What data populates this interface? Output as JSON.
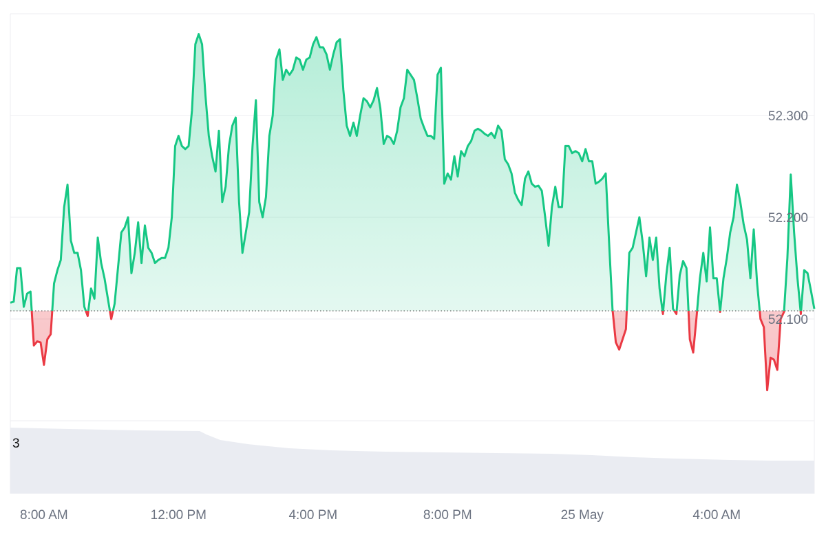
{
  "chart_data": {
    "type": "area",
    "baseline": 52.108,
    "ylim": [
      52.0,
      52.4
    ],
    "y_ticks": [
      "52.300",
      "52.200",
      "52.100"
    ],
    "y_tick_values": [
      52.3,
      52.2,
      52.1
    ],
    "x_ticks": [
      "8:00 AM",
      "12:00 PM",
      "4:00 PM",
      "8:00 PM",
      "25 May",
      "4:00 AM"
    ],
    "x_tick_hours": [
      8,
      12,
      16,
      20,
      24,
      28
    ],
    "xlim_hours": [
      7.0,
      30.9
    ],
    "colors": {
      "up": "#16c784",
      "down": "#ea3943",
      "up_fill": "#16c784",
      "down_fill": "#ea3943",
      "grid": "#eeeef0",
      "baseline": "#555555",
      "volume": "#eaecf2"
    },
    "volume_axis_label": "3",
    "series": [
      {
        "values": [
          [
            7.0,
            52.116
          ],
          [
            7.1,
            52.117
          ],
          [
            7.2,
            52.15
          ],
          [
            7.3,
            52.15
          ],
          [
            7.4,
            52.112
          ],
          [
            7.5,
            52.125
          ],
          [
            7.6,
            52.127
          ],
          [
            7.7,
            52.074
          ],
          [
            7.8,
            52.078
          ],
          [
            7.9,
            52.077
          ],
          [
            8.0,
            52.055
          ],
          [
            8.1,
            52.08
          ],
          [
            8.2,
            52.085
          ],
          [
            8.3,
            52.135
          ],
          [
            8.4,
            52.148
          ],
          [
            8.5,
            52.158
          ],
          [
            8.6,
            52.21
          ],
          [
            8.7,
            52.232
          ],
          [
            8.8,
            52.177
          ],
          [
            8.9,
            52.165
          ],
          [
            9.0,
            52.165
          ],
          [
            9.1,
            52.148
          ],
          [
            9.2,
            52.112
          ],
          [
            9.3,
            52.103
          ],
          [
            9.4,
            52.13
          ],
          [
            9.5,
            52.12
          ],
          [
            9.6,
            52.18
          ],
          [
            9.7,
            52.155
          ],
          [
            9.8,
            52.14
          ],
          [
            9.9,
            52.12
          ],
          [
            10.0,
            52.1
          ],
          [
            10.1,
            52.115
          ],
          [
            10.2,
            52.15
          ],
          [
            10.3,
            52.185
          ],
          [
            10.4,
            52.19
          ],
          [
            10.5,
            52.2
          ],
          [
            10.6,
            52.145
          ],
          [
            10.7,
            52.165
          ],
          [
            10.8,
            52.195
          ],
          [
            10.9,
            52.155
          ],
          [
            11.0,
            52.192
          ],
          [
            11.1,
            52.17
          ],
          [
            11.2,
            52.165
          ],
          [
            11.3,
            52.155
          ],
          [
            11.4,
            52.158
          ],
          [
            11.5,
            52.16
          ],
          [
            11.6,
            52.16
          ],
          [
            11.7,
            52.17
          ],
          [
            11.8,
            52.2
          ],
          [
            11.9,
            52.27
          ],
          [
            12.0,
            52.28
          ],
          [
            12.1,
            52.27
          ],
          [
            12.2,
            52.267
          ],
          [
            12.3,
            52.27
          ],
          [
            12.4,
            52.305
          ],
          [
            12.5,
            52.37
          ],
          [
            12.6,
            52.38
          ],
          [
            12.7,
            52.37
          ],
          [
            12.8,
            52.32
          ],
          [
            12.9,
            52.28
          ],
          [
            13.0,
            52.26
          ],
          [
            13.1,
            52.245
          ],
          [
            13.2,
            52.285
          ],
          [
            13.3,
            52.215
          ],
          [
            13.4,
            52.23
          ],
          [
            13.5,
            52.27
          ],
          [
            13.6,
            52.29
          ],
          [
            13.7,
            52.298
          ],
          [
            13.8,
            52.215
          ],
          [
            13.9,
            52.165
          ],
          [
            14.0,
            52.185
          ],
          [
            14.1,
            52.205
          ],
          [
            14.2,
            52.27
          ],
          [
            14.3,
            52.315
          ],
          [
            14.4,
            52.215
          ],
          [
            14.5,
            52.2
          ],
          [
            14.6,
            52.22
          ],
          [
            14.7,
            52.28
          ],
          [
            14.8,
            52.3
          ],
          [
            14.9,
            52.355
          ],
          [
            15.0,
            52.365
          ],
          [
            15.1,
            52.335
          ],
          [
            15.2,
            52.345
          ],
          [
            15.3,
            52.34
          ],
          [
            15.4,
            52.345
          ],
          [
            15.5,
            52.357
          ],
          [
            15.6,
            52.355
          ],
          [
            15.7,
            52.345
          ],
          [
            15.8,
            52.355
          ],
          [
            15.9,
            52.357
          ],
          [
            16.0,
            52.37
          ],
          [
            16.1,
            52.377
          ],
          [
            16.2,
            52.367
          ],
          [
            16.3,
            52.367
          ],
          [
            16.4,
            52.36
          ],
          [
            16.5,
            52.345
          ],
          [
            16.6,
            52.36
          ],
          [
            16.7,
            52.372
          ],
          [
            16.8,
            52.375
          ],
          [
            16.9,
            52.325
          ],
          [
            17.0,
            52.29
          ],
          [
            17.1,
            52.28
          ],
          [
            17.2,
            52.293
          ],
          [
            17.3,
            52.28
          ],
          [
            17.4,
            52.3
          ],
          [
            17.5,
            52.317
          ],
          [
            17.6,
            52.314
          ],
          [
            17.7,
            52.308
          ],
          [
            17.8,
            52.315
          ],
          [
            17.9,
            52.327
          ],
          [
            18.0,
            52.307
          ],
          [
            18.1,
            52.272
          ],
          [
            18.2,
            52.28
          ],
          [
            18.3,
            52.278
          ],
          [
            18.4,
            52.272
          ],
          [
            18.5,
            52.285
          ],
          [
            18.6,
            52.308
          ],
          [
            18.7,
            52.317
          ],
          [
            18.8,
            52.345
          ],
          [
            18.9,
            52.34
          ],
          [
            19.0,
            52.335
          ],
          [
            19.1,
            52.317
          ],
          [
            19.2,
            52.297
          ],
          [
            19.3,
            52.288
          ],
          [
            19.4,
            52.28
          ],
          [
            19.5,
            52.28
          ],
          [
            19.6,
            52.277
          ],
          [
            19.7,
            52.34
          ],
          [
            19.8,
            52.347
          ],
          [
            19.9,
            52.233
          ],
          [
            20.0,
            52.243
          ],
          [
            20.1,
            52.237
          ],
          [
            20.2,
            52.26
          ],
          [
            20.3,
            52.24
          ],
          [
            20.4,
            52.265
          ],
          [
            20.5,
            52.26
          ],
          [
            20.6,
            52.27
          ],
          [
            20.7,
            52.275
          ],
          [
            20.8,
            52.285
          ],
          [
            20.9,
            52.287
          ],
          [
            21.0,
            52.285
          ],
          [
            21.1,
            52.282
          ],
          [
            21.2,
            52.28
          ],
          [
            21.3,
            52.283
          ],
          [
            21.4,
            52.278
          ],
          [
            21.5,
            52.29
          ],
          [
            21.6,
            52.285
          ],
          [
            21.7,
            52.257
          ],
          [
            21.8,
            52.252
          ],
          [
            21.9,
            52.243
          ],
          [
            22.0,
            52.224
          ],
          [
            22.1,
            52.217
          ],
          [
            22.2,
            52.212
          ],
          [
            22.3,
            52.238
          ],
          [
            22.4,
            52.245
          ],
          [
            22.5,
            52.233
          ],
          [
            22.6,
            52.23
          ],
          [
            22.7,
            52.231
          ],
          [
            22.8,
            52.226
          ],
          [
            22.9,
            52.2
          ],
          [
            23.0,
            52.172
          ],
          [
            23.1,
            52.21
          ],
          [
            23.2,
            52.23
          ],
          [
            23.3,
            52.21
          ],
          [
            23.4,
            52.21
          ],
          [
            23.5,
            52.27
          ],
          [
            23.6,
            52.27
          ],
          [
            23.7,
            52.263
          ],
          [
            23.8,
            52.265
          ],
          [
            23.9,
            52.263
          ],
          [
            24.0,
            52.255
          ],
          [
            24.1,
            52.267
          ],
          [
            24.2,
            52.255
          ],
          [
            24.3,
            52.255
          ],
          [
            24.4,
            52.233
          ],
          [
            24.5,
            52.235
          ],
          [
            24.6,
            52.238
          ],
          [
            24.7,
            52.243
          ],
          [
            24.8,
            52.175
          ],
          [
            24.9,
            52.11
          ],
          [
            25.0,
            52.077
          ],
          [
            25.1,
            52.07
          ],
          [
            25.2,
            52.08
          ],
          [
            25.3,
            52.09
          ],
          [
            25.4,
            52.165
          ],
          [
            25.5,
            52.17
          ],
          [
            25.6,
            52.185
          ],
          [
            25.7,
            52.2
          ],
          [
            25.8,
            52.175
          ],
          [
            25.9,
            52.142
          ],
          [
            26.0,
            52.18
          ],
          [
            26.1,
            52.158
          ],
          [
            26.2,
            52.18
          ],
          [
            26.3,
            52.13
          ],
          [
            26.4,
            52.105
          ],
          [
            26.5,
            52.143
          ],
          [
            26.6,
            52.17
          ],
          [
            26.7,
            52.11
          ],
          [
            26.8,
            52.105
          ],
          [
            26.9,
            52.143
          ],
          [
            27.0,
            52.157
          ],
          [
            27.1,
            52.15
          ],
          [
            27.2,
            52.08
          ],
          [
            27.3,
            52.067
          ],
          [
            27.4,
            52.102
          ],
          [
            27.5,
            52.14
          ],
          [
            27.6,
            52.165
          ],
          [
            27.7,
            52.137
          ],
          [
            27.8,
            52.19
          ],
          [
            27.9,
            52.14
          ],
          [
            28.0,
            52.14
          ],
          [
            28.1,
            52.107
          ],
          [
            28.2,
            52.14
          ],
          [
            28.3,
            52.16
          ],
          [
            28.4,
            52.185
          ],
          [
            28.5,
            52.2
          ],
          [
            28.6,
            52.232
          ],
          [
            28.7,
            52.215
          ],
          [
            28.8,
            52.193
          ],
          [
            28.9,
            52.178
          ],
          [
            29.0,
            52.14
          ],
          [
            29.1,
            52.188
          ],
          [
            29.2,
            52.135
          ],
          [
            29.3,
            52.1
          ],
          [
            29.4,
            52.092
          ],
          [
            29.5,
            52.03
          ],
          [
            29.6,
            52.062
          ],
          [
            29.7,
            52.06
          ],
          [
            29.8,
            52.05
          ],
          [
            29.9,
            52.1
          ],
          [
            30.0,
            52.107
          ],
          [
            30.1,
            52.16
          ],
          [
            30.2,
            52.242
          ],
          [
            30.3,
            52.185
          ],
          [
            30.4,
            52.14
          ],
          [
            30.5,
            52.105
          ],
          [
            30.6,
            52.148
          ],
          [
            30.7,
            52.145
          ],
          [
            30.8,
            52.128
          ],
          [
            30.9,
            52.11
          ]
        ]
      }
    ]
  }
}
